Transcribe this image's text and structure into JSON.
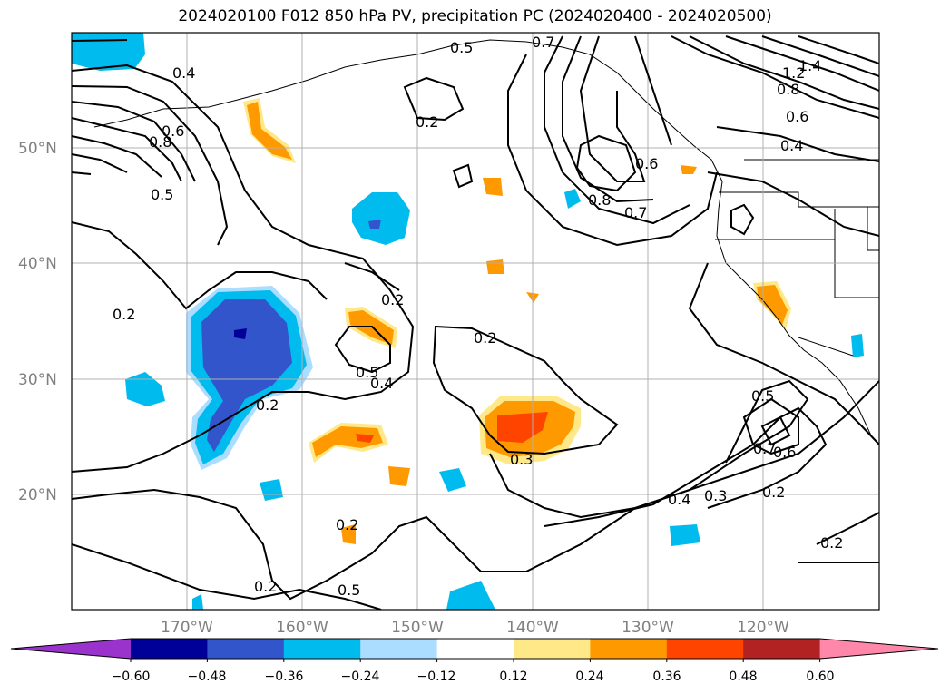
{
  "title": "2024020100 F012 850 hPa PV, precipitation PC (2024020400 - 2024020500)",
  "map": {
    "lat_labels": [
      "50°N",
      "40°N",
      "30°N",
      "20°N"
    ],
    "lon_labels": [
      "170°W",
      "160°W",
      "150°W",
      "140°W",
      "130°W",
      "120°W"
    ],
    "contour_labels": [
      "0.4",
      "0.5",
      "0.7",
      "0.6",
      "0.8",
      "0.2",
      "0.5",
      "0.2",
      "0.2",
      "0.5",
      "0.4",
      "0.2",
      "0.3",
      "0.2",
      "0.2",
      "0.2",
      "0.8",
      "0.7",
      "0.6",
      "0.5",
      "0.4",
      "0.3",
      "0.2",
      "0.2",
      "1.4",
      "1.2",
      "0.8",
      "0.6",
      "0.4",
      "0.5",
      "0.6",
      "0.7"
    ],
    "grid_color": "#b0b0b0",
    "land_outline_color": "#000000"
  },
  "colorbar": {
    "ticks": [
      "−0.60",
      "−0.48",
      "−0.36",
      "−0.24",
      "−0.12",
      "0.12",
      "0.24",
      "0.36",
      "0.48",
      "0.60"
    ],
    "colors": [
      "#9933cc",
      "#000099",
      "#3355cc",
      "#00bbee",
      "#aaddff",
      "#ffffff",
      "#ffe888",
      "#ff9900",
      "#ff4400",
      "#b22222",
      "#ff88aa"
    ]
  }
}
